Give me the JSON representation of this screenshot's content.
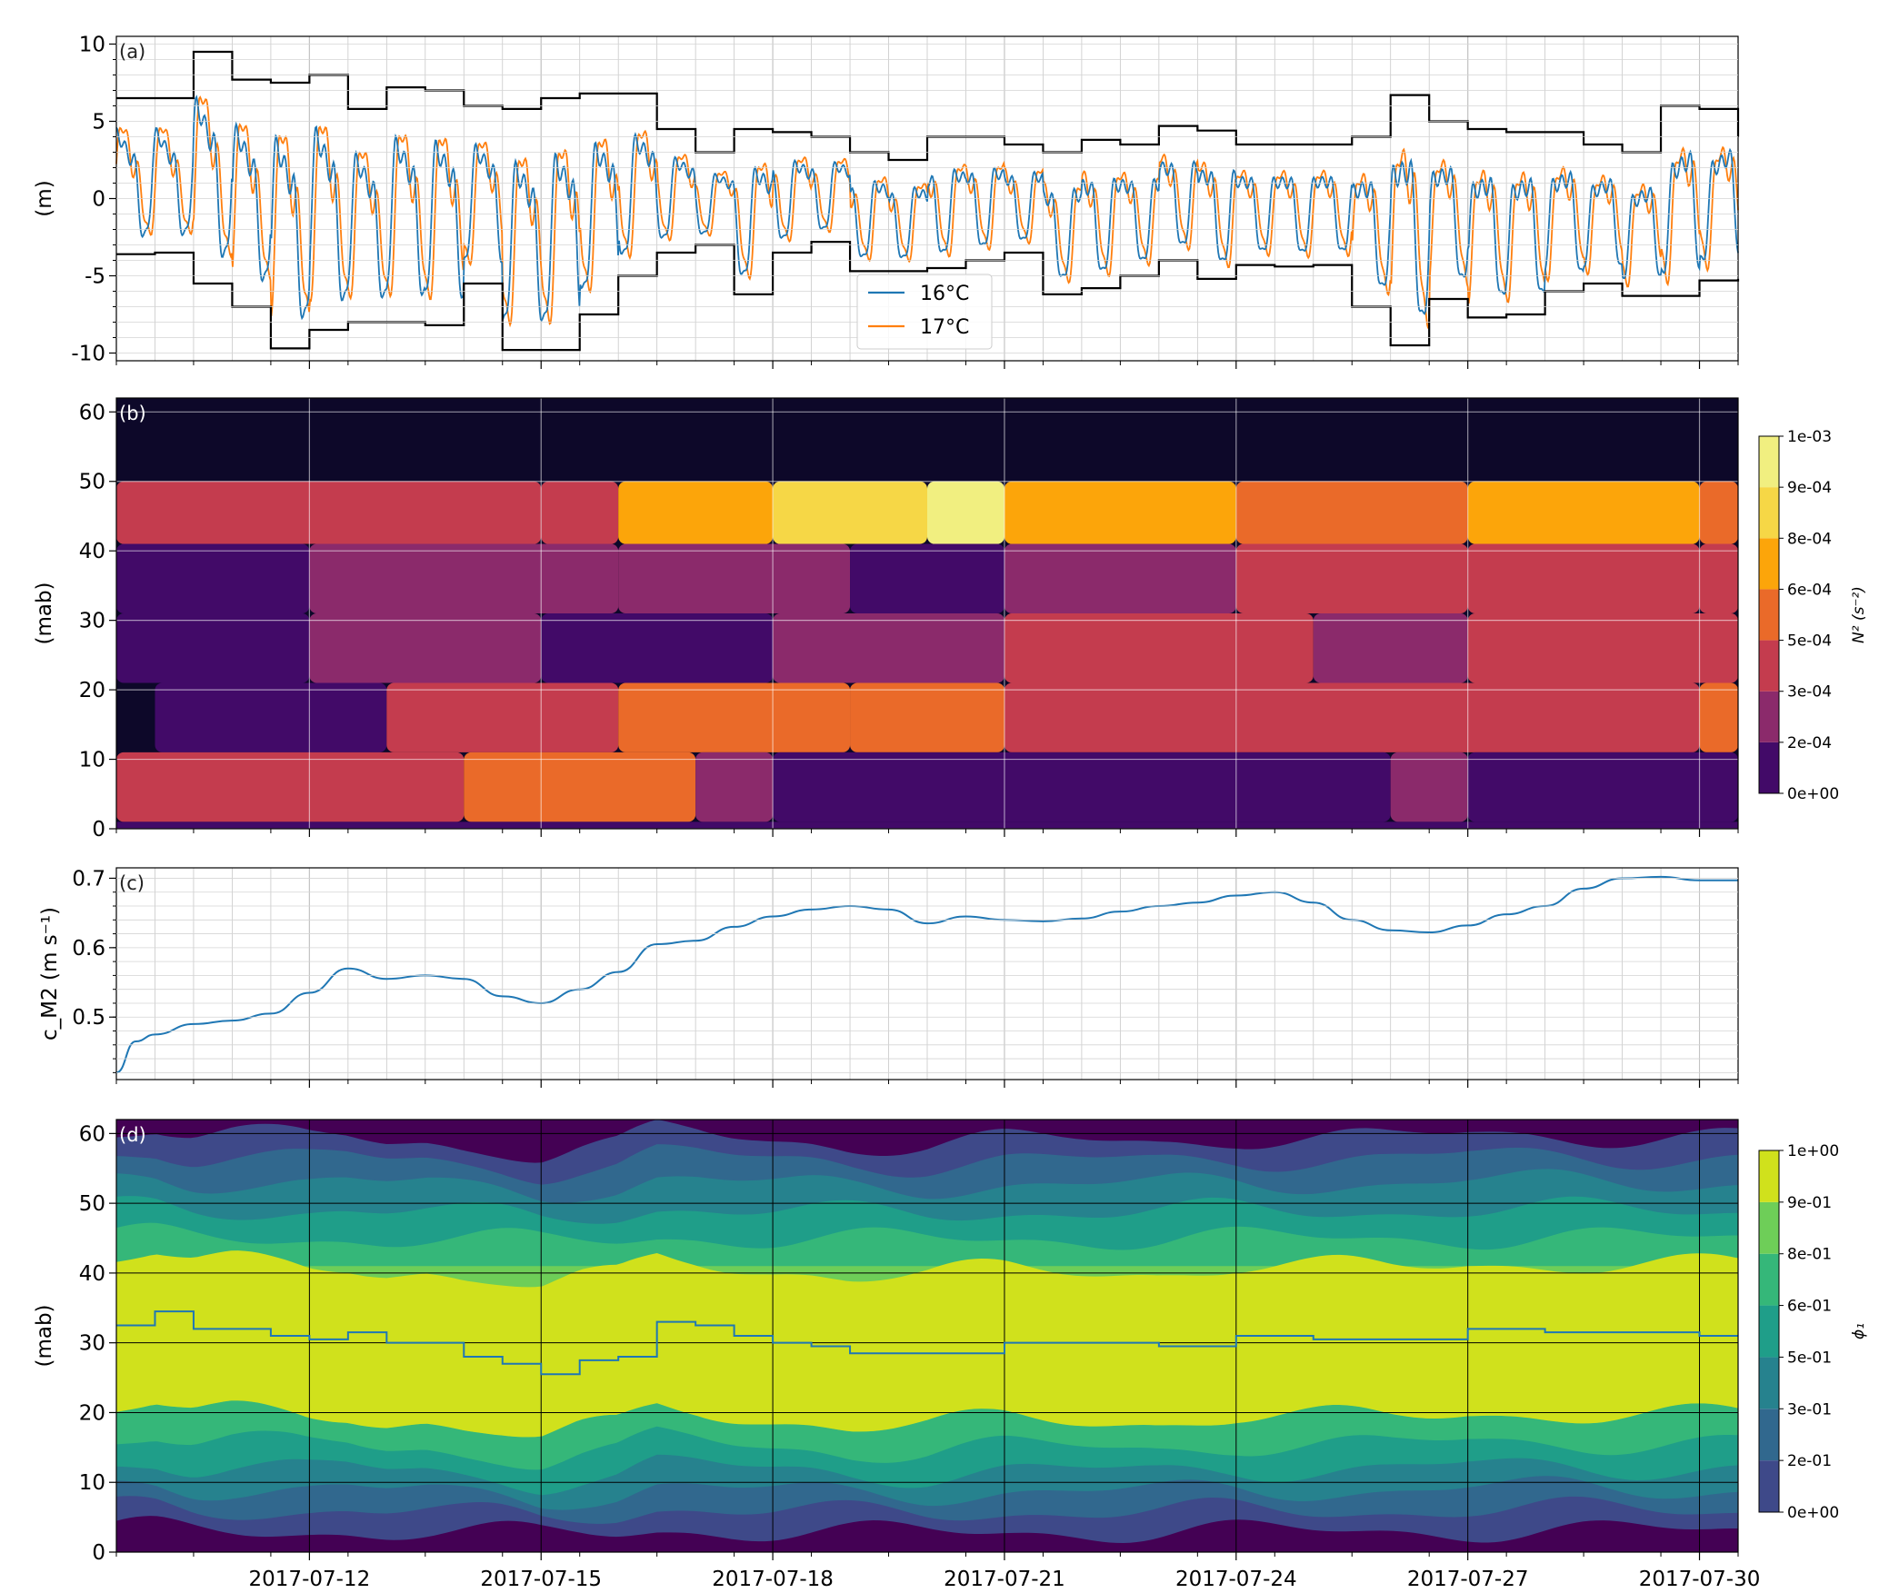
{
  "x_axis": {
    "start": "2017-07-09 12:00",
    "end": "2017-07-30 12:00",
    "ticks": [
      "2017-07-12",
      "2017-07-15",
      "2017-07-18",
      "2017-07-21",
      "2017-07-24",
      "2017-07-27",
      "2017-07-30"
    ]
  },
  "chart_data": [
    {
      "panel_label": "(a)",
      "type": "line",
      "xlabel": "",
      "ylabel": "(m)",
      "ylim": [
        -10.5,
        10.5
      ],
      "yticks": [
        -10,
        -5,
        0,
        5,
        10
      ],
      "grid": true,
      "legend": "center-bottom",
      "colors": {
        "16°C": "#1f77b4",
        "17°C": "#ff7f0e",
        "envelope": "#000000"
      },
      "series": [
        {
          "name": "16°C",
          "description_values": "oscillating isotherm displacement",
          "dominant_period_hours": 12.42,
          "amplitude_m_range": [
            3,
            8
          ]
        },
        {
          "name": "17°C",
          "description_values": "oscillating isotherm displacement",
          "dominant_period_hours": 12.42,
          "amplitude_m_range": [
            3,
            8
          ]
        }
      ],
      "envelope_upper": {
        "x": [
          "2017-07-09 12:00",
          "2017-07-10 00:00",
          "2017-07-10 12:00",
          "2017-07-11 00:00",
          "2017-07-11 12:00",
          "2017-07-12 00:00",
          "2017-07-12 12:00",
          "2017-07-13 00:00",
          "2017-07-13 12:00",
          "2017-07-14 00:00",
          "2017-07-14 12:00",
          "2017-07-15 00:00",
          "2017-07-15 12:00",
          "2017-07-16 00:00",
          "2017-07-16 12:00",
          "2017-07-17 00:00",
          "2017-07-17 12:00",
          "2017-07-18 00:00",
          "2017-07-18 12:00",
          "2017-07-19 00:00",
          "2017-07-19 12:00",
          "2017-07-20 00:00",
          "2017-07-20 12:00",
          "2017-07-21 00:00",
          "2017-07-21 12:00",
          "2017-07-22 00:00",
          "2017-07-22 12:00",
          "2017-07-23 00:00",
          "2017-07-23 12:00",
          "2017-07-24 00:00",
          "2017-07-24 12:00",
          "2017-07-25 00:00",
          "2017-07-25 12:00",
          "2017-07-26 00:00",
          "2017-07-26 12:00",
          "2017-07-27 00:00",
          "2017-07-27 12:00",
          "2017-07-28 00:00",
          "2017-07-28 12:00",
          "2017-07-29 00:00",
          "2017-07-29 12:00",
          "2017-07-30 00:00",
          "2017-07-30 12:00"
        ],
        "y": [
          6.5,
          6.5,
          9.5,
          7.7,
          7.5,
          8.0,
          5.8,
          7.2,
          7.0,
          6.0,
          5.8,
          6.5,
          6.8,
          6.8,
          4.5,
          3.0,
          4.5,
          4.3,
          4.0,
          3.0,
          2.5,
          4.0,
          4.0,
          3.5,
          3.0,
          3.8,
          3.5,
          4.7,
          4.4,
          3.5,
          3.5,
          3.5,
          4.0,
          6.7,
          5.0,
          4.5,
          4.3,
          4.3,
          3.5,
          3.0,
          6.0,
          5.8,
          4.0
        ]
      },
      "envelope_lower": {
        "x": [
          "2017-07-09 12:00",
          "2017-07-10 00:00",
          "2017-07-10 12:00",
          "2017-07-11 00:00",
          "2017-07-11 12:00",
          "2017-07-12 00:00",
          "2017-07-12 12:00",
          "2017-07-13 00:00",
          "2017-07-13 12:00",
          "2017-07-14 00:00",
          "2017-07-14 12:00",
          "2017-07-15 00:00",
          "2017-07-15 12:00",
          "2017-07-16 00:00",
          "2017-07-16 12:00",
          "2017-07-17 00:00",
          "2017-07-17 12:00",
          "2017-07-18 00:00",
          "2017-07-18 12:00",
          "2017-07-19 00:00",
          "2017-07-19 12:00",
          "2017-07-20 00:00",
          "2017-07-20 12:00",
          "2017-07-21 00:00",
          "2017-07-21 12:00",
          "2017-07-22 00:00",
          "2017-07-22 12:00",
          "2017-07-23 00:00",
          "2017-07-23 12:00",
          "2017-07-24 00:00",
          "2017-07-24 12:00",
          "2017-07-25 00:00",
          "2017-07-25 12:00",
          "2017-07-26 00:00",
          "2017-07-26 12:00",
          "2017-07-27 00:00",
          "2017-07-27 12:00",
          "2017-07-28 00:00",
          "2017-07-28 12:00",
          "2017-07-29 00:00",
          "2017-07-29 12:00",
          "2017-07-30 00:00",
          "2017-07-30 12:00"
        ],
        "y": [
          -3.6,
          -3.5,
          -5.5,
          -7.0,
          -9.7,
          -8.5,
          -8.0,
          -8.0,
          -8.2,
          -5.5,
          -9.8,
          -9.8,
          -7.5,
          -5.0,
          -3.5,
          -3.0,
          -6.2,
          -3.5,
          -2.8,
          -4.7,
          -4.7,
          -4.5,
          -4.0,
          -3.5,
          -6.2,
          -5.8,
          -5.0,
          -4.0,
          -5.2,
          -4.3,
          -4.4,
          -4.3,
          -7.0,
          -9.5,
          -6.5,
          -7.7,
          -7.5,
          -6.0,
          -5.5,
          -6.3,
          -6.3,
          -5.3,
          -5.2
        ]
      }
    },
    {
      "panel_label": "(b)",
      "type": "heatmap",
      "ylabel": "(mab)",
      "ylim": [
        0,
        62
      ],
      "yticks": [
        0,
        10,
        20,
        30,
        40,
        50,
        60
      ],
      "colorbar": {
        "label": "N² (s⁻²)",
        "ticks": [
          "0e+00",
          "2e-04",
          "3e-04",
          "5e-04",
          "6e-04",
          "8e-04",
          "9e-04",
          "1e-03"
        ],
        "colors": [
          "#0d0829",
          "#420a68",
          "#8b2a6b",
          "#c43c4e",
          "#ea6a29",
          "#fca50a",
          "#f6d746",
          "#f1ef80"
        ]
      },
      "levels_units": "N2 level index (0=lowest, 7=highest)",
      "layers": [
        {
          "z": [
            50,
            62
          ],
          "level": 0
        },
        {
          "z": [
            41,
            50
          ],
          "level_by_date": {
            "2017-07-09": 3,
            "2017-07-15": 3,
            "2017-07-16": 5,
            "2017-07-18": 6,
            "2017-07-20": 7,
            "2017-07-21": 5,
            "2017-07-24": 4,
            "2017-07-27": 5,
            "2017-07-30": 4
          }
        },
        {
          "z": [
            31,
            41
          ],
          "level_by_date": {
            "2017-07-09": 1,
            "2017-07-12": 2,
            "2017-07-16": 2,
            "2017-07-19": 1,
            "2017-07-21": 2,
            "2017-07-24": 3,
            "2017-07-27": 3,
            "2017-07-30": 3
          }
        },
        {
          "z": [
            21,
            31
          ],
          "level_by_date": {
            "2017-07-09": 1,
            "2017-07-12": 2,
            "2017-07-15": 1,
            "2017-07-18": 2,
            "2017-07-21": 3,
            "2017-07-25": 2,
            "2017-07-27": 3
          }
        },
        {
          "z": [
            11,
            21
          ],
          "level_by_date": {
            "2017-07-09": 0,
            "2017-07-10": 1,
            "2017-07-13": 3,
            "2017-07-16": 4,
            "2017-07-19": 4,
            "2017-07-21": 3,
            "2017-07-30": 4
          }
        },
        {
          "z": [
            1,
            11
          ],
          "level_by_date": {
            "2017-07-09": 3,
            "2017-07-14": 4,
            "2017-07-17": 2,
            "2017-07-18": 1,
            "2017-07-26": 2,
            "2017-07-27": 1
          }
        },
        {
          "z": [
            0,
            1
          ],
          "level": 1
        }
      ]
    },
    {
      "panel_label": "(c)",
      "type": "line",
      "ylabel": "c_M2 (m s⁻¹)",
      "ylim": [
        0.41,
        0.715
      ],
      "yticks": [
        0.5,
        0.6,
        0.7
      ],
      "grid": true,
      "series": [
        {
          "color": "#1f77b4",
          "x": [
            "2017-07-09 12:00",
            "2017-07-09 18:00",
            "2017-07-10 00:00",
            "2017-07-10 12:00",
            "2017-07-11 00:00",
            "2017-07-11 12:00",
            "2017-07-12 00:00",
            "2017-07-12 12:00",
            "2017-07-13 00:00",
            "2017-07-13 12:00",
            "2017-07-14 00:00",
            "2017-07-14 12:00",
            "2017-07-15 00:00",
            "2017-07-15 12:00",
            "2017-07-16 00:00",
            "2017-07-16 12:00",
            "2017-07-17 00:00",
            "2017-07-17 12:00",
            "2017-07-18 00:00",
            "2017-07-18 12:00",
            "2017-07-19 00:00",
            "2017-07-19 12:00",
            "2017-07-20 00:00",
            "2017-07-20 12:00",
            "2017-07-21 00:00",
            "2017-07-21 12:00",
            "2017-07-22 00:00",
            "2017-07-22 12:00",
            "2017-07-23 00:00",
            "2017-07-23 12:00",
            "2017-07-24 00:00",
            "2017-07-24 12:00",
            "2017-07-25 00:00",
            "2017-07-25 12:00",
            "2017-07-26 00:00",
            "2017-07-26 12:00",
            "2017-07-27 00:00",
            "2017-07-27 12:00",
            "2017-07-28 00:00",
            "2017-07-28 12:00",
            "2017-07-29 00:00",
            "2017-07-29 12:00",
            "2017-07-30 00:00",
            "2017-07-30 12:00"
          ],
          "y": [
            0.42,
            0.465,
            0.475,
            0.49,
            0.495,
            0.505,
            0.535,
            0.57,
            0.555,
            0.56,
            0.555,
            0.53,
            0.52,
            0.54,
            0.565,
            0.605,
            0.61,
            0.63,
            0.645,
            0.655,
            0.66,
            0.655,
            0.635,
            0.645,
            0.64,
            0.638,
            0.642,
            0.652,
            0.66,
            0.665,
            0.675,
            0.68,
            0.665,
            0.64,
            0.625,
            0.622,
            0.632,
            0.648,
            0.66,
            0.685,
            0.7,
            0.702,
            0.697,
            0.697
          ]
        }
      ]
    },
    {
      "panel_label": "(d)",
      "type": "heatmap",
      "ylabel": "(mab)",
      "ylim": [
        0,
        62
      ],
      "yticks": [
        0,
        10,
        20,
        30,
        40,
        50,
        60
      ],
      "colorbar": {
        "label": "ϕ₁",
        "ticks": [
          "0e+00",
          "2e-01",
          "3e-01",
          "5e-01",
          "6e-01",
          "8e-01",
          "9e-01",
          "1e+00"
        ],
        "colors": [
          "#440154",
          "#3e4989",
          "#31688e",
          "#26828e",
          "#1f9e89",
          "#35b779",
          "#6ece58",
          "#d0e11c"
        ]
      },
      "max_line": {
        "color": "#1f77b4",
        "x": [
          "2017-07-09 12:00",
          "2017-07-10 00:00",
          "2017-07-10 12:00",
          "2017-07-11 00:00",
          "2017-07-11 12:00",
          "2017-07-12 00:00",
          "2017-07-12 12:00",
          "2017-07-13 00:00",
          "2017-07-13 12:00",
          "2017-07-14 00:00",
          "2017-07-14 12:00",
          "2017-07-15 00:00",
          "2017-07-15 12:00",
          "2017-07-16 00:00",
          "2017-07-16 12:00",
          "2017-07-17 00:00",
          "2017-07-17 12:00",
          "2017-07-18 00:00",
          "2017-07-18 12:00",
          "2017-07-19 00:00",
          "2017-07-20 00:00",
          "2017-07-21 00:00",
          "2017-07-22 00:00",
          "2017-07-23 00:00",
          "2017-07-24 00:00",
          "2017-07-25 00:00",
          "2017-07-26 00:00",
          "2017-07-27 00:00",
          "2017-07-28 00:00",
          "2017-07-29 00:00",
          "2017-07-30 00:00",
          "2017-07-30 12:00"
        ],
        "y": [
          32.5,
          34.5,
          32,
          32,
          31,
          30.5,
          31.5,
          30,
          30,
          28,
          27,
          25.5,
          27.5,
          28,
          33,
          32.5,
          31,
          30,
          29.5,
          28.5,
          28.5,
          30,
          30,
          29.5,
          31,
          30.5,
          30.5,
          32,
          31.5,
          31.5,
          31,
          31
        ]
      }
    }
  ]
}
